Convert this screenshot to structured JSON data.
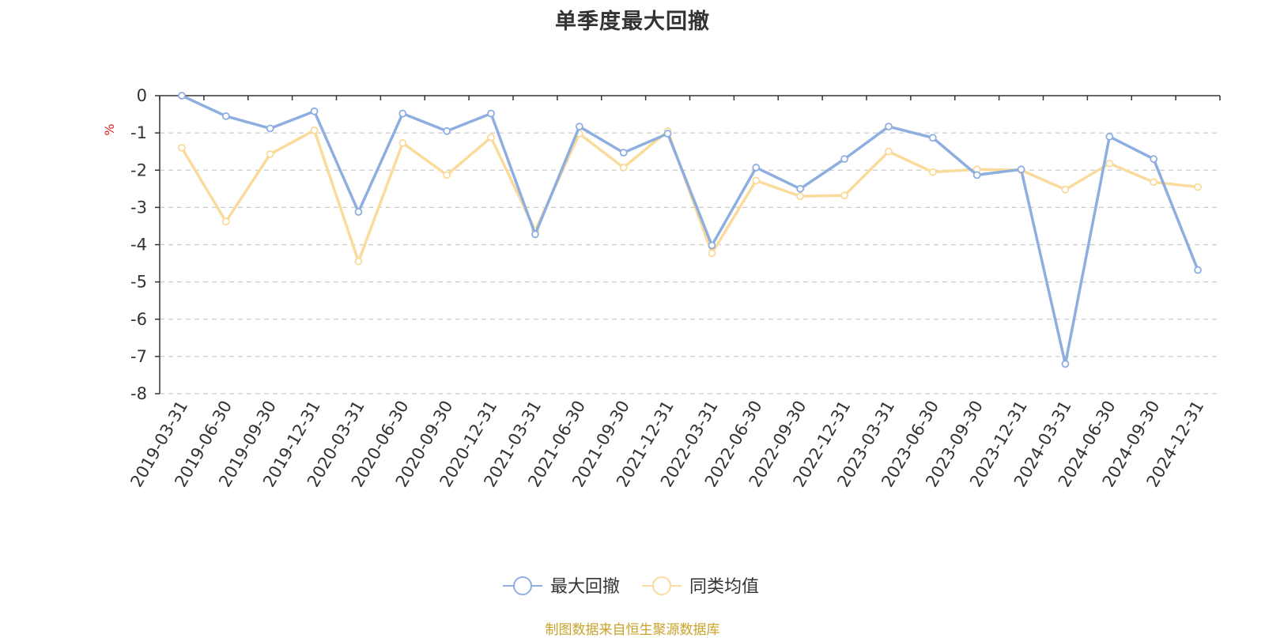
{
  "title": "单季度最大回撤",
  "footer": "制图数据来自恒生聚源数据库",
  "chart_data": {
    "type": "line",
    "title": "单季度最大回撤",
    "ylabel": "%",
    "xlabel": "",
    "ylim": [
      -8,
      0
    ],
    "yticks": [
      0,
      -1,
      -2,
      -3,
      -4,
      -5,
      -6,
      -7,
      -8
    ],
    "grid": true,
    "legend_position": "bottom",
    "categories": [
      "2019-03-31",
      "2019-06-30",
      "2019-09-30",
      "2019-12-31",
      "2020-03-31",
      "2020-06-30",
      "2020-09-30",
      "2020-12-31",
      "2021-03-31",
      "2021-06-30",
      "2021-09-30",
      "2021-12-31",
      "2022-03-31",
      "2022-06-30",
      "2022-09-30",
      "2022-12-31",
      "2023-03-31",
      "2023-06-30",
      "2023-09-30",
      "2023-12-31",
      "2024-03-31",
      "2024-06-30",
      "2024-09-30",
      "2024-12-31"
    ],
    "series": [
      {
        "name": "最大回撤",
        "color": "#8eaee0",
        "values": [
          0,
          -0.55,
          -0.88,
          -0.42,
          -3.12,
          -0.48,
          -0.95,
          -0.48,
          -3.72,
          -0.83,
          -1.53,
          -1.02,
          -4.02,
          -1.93,
          -2.5,
          -1.7,
          -0.83,
          -1.13,
          -2.13,
          -1.98,
          -7.2,
          -1.1,
          -1.7,
          -4.68
        ]
      },
      {
        "name": "同类均值",
        "color": "#fadb9b",
        "values": [
          -1.4,
          -3.38,
          -1.57,
          -0.93,
          -4.45,
          -1.27,
          -2.13,
          -1.12,
          -3.62,
          -1.02,
          -1.93,
          -0.95,
          -4.23,
          -2.28,
          -2.7,
          -2.68,
          -1.5,
          -2.05,
          -1.98,
          -2.0,
          -2.52,
          -1.82,
          -2.32,
          -2.45
        ]
      }
    ]
  }
}
